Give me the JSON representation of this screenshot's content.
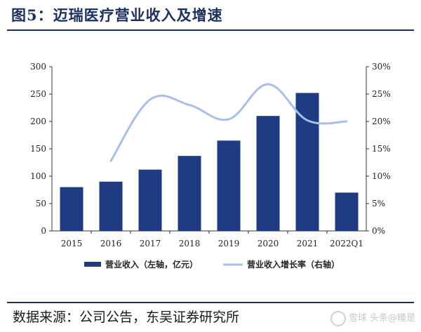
{
  "title": "图5：迈瑞医疗营业收入及增速",
  "source": "数据来源：公司公告，东吴证券研究所",
  "watermark": "雪球 头条@瞳是",
  "colors": {
    "bar": "#1f3b82",
    "line": "#a9bfe6",
    "rule": "#1c2f5e"
  },
  "chart_data": {
    "type": "bar",
    "categories": [
      "2015",
      "2016",
      "2017",
      "2018",
      "2019",
      "2020",
      "2021",
      "2022Q1"
    ],
    "series": [
      {
        "name": "营业收入（左轴，亿元）",
        "type": "bar",
        "axis": "left",
        "values": [
          80,
          90,
          112,
          137,
          165,
          210,
          252,
          70
        ]
      },
      {
        "name": "营业收入增长率（右轴）",
        "type": "line",
        "axis": "right",
        "values": [
          null,
          12.8,
          24.0,
          23.0,
          20.4,
          26.8,
          20.2,
          20.0
        ]
      }
    ],
    "yleft": {
      "min": 0,
      "max": 300,
      "ticks": [
        "0",
        "50",
        "100",
        "150",
        "200",
        "250",
        "300"
      ]
    },
    "yright": {
      "min": 0,
      "max": 30,
      "ticks": [
        "0%",
        "5%",
        "10%",
        "15%",
        "20%",
        "25%",
        "30%"
      ]
    },
    "legend_position": "bottom",
    "grid": false
  }
}
